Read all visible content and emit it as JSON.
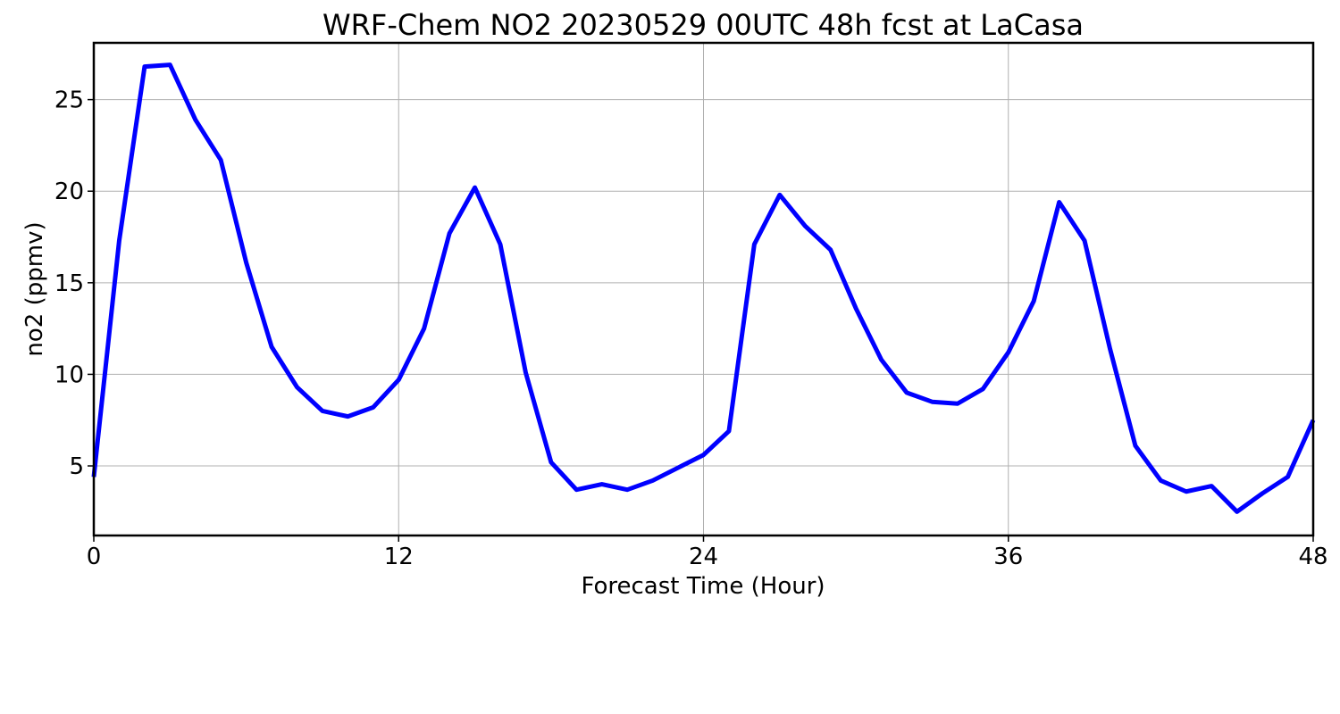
{
  "chart_data": {
    "type": "line",
    "title": "WRF-Chem NO2  20230529 00UTC 48h fcst at LaCasa",
    "xlabel": "Forecast Time (Hour)",
    "ylabel": "no2  (ppmv)",
    "xlim": [
      0,
      48
    ],
    "ylim": [
      1.2,
      28.1
    ],
    "xticks": [
      0,
      12,
      24,
      36,
      48
    ],
    "yticks": [
      5,
      10,
      15,
      20,
      25
    ],
    "grid": true,
    "series": [
      {
        "color": "#0000ff",
        "x": [
          0,
          1,
          2,
          3,
          4,
          5,
          6,
          7,
          8,
          9,
          10,
          11,
          12,
          13,
          14,
          15,
          16,
          17,
          18,
          19,
          20,
          21,
          22,
          23,
          24,
          25,
          26,
          27,
          28,
          29,
          30,
          31,
          32,
          33,
          34,
          35,
          36,
          37,
          38,
          39,
          40,
          41,
          42,
          43,
          44,
          45,
          46,
          47,
          48
        ],
        "values": [
          4.4,
          17.3,
          26.8,
          26.9,
          23.9,
          21.7,
          16.1,
          11.5,
          9.3,
          8.0,
          7.7,
          8.2,
          9.7,
          12.5,
          17.7,
          20.2,
          17.1,
          10.1,
          5.2,
          3.7,
          4.0,
          3.7,
          4.2,
          4.9,
          5.6,
          6.9,
          17.1,
          19.8,
          18.1,
          16.8,
          13.6,
          10.8,
          9.0,
          8.5,
          8.4,
          9.2,
          11.2,
          14.0,
          19.4,
          17.3,
          11.4,
          6.1,
          4.2,
          3.6,
          3.9,
          2.5,
          3.5,
          4.4,
          7.5
        ]
      }
    ]
  }
}
